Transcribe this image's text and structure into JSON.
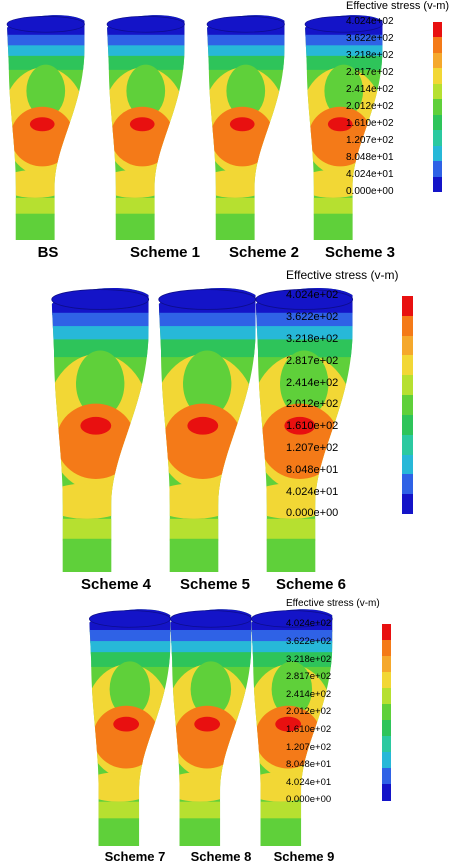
{
  "legend": {
    "title": "Effective stress (v-m)",
    "ticks": [
      "4.024e+02",
      "3.622e+02",
      "3.218e+02",
      "2.817e+02",
      "2.414e+02",
      "2.012e+02",
      "1.610e+02",
      "1.207e+02",
      "8.048e+01",
      "4.024e+01",
      "0.000e+00"
    ],
    "colors": [
      "#e81010",
      "#f47a18",
      "#f5a82c",
      "#f2d735",
      "#b6e030",
      "#5fd03a",
      "#2ec45a",
      "#2bc9a0",
      "#27b8d8",
      "#2f62e6",
      "#1414c8"
    ]
  },
  "groups": [
    {
      "id": "row1",
      "labels": [
        "BS",
        "Scheme 1",
        "Scheme 2",
        "Scheme 3"
      ]
    },
    {
      "id": "row2",
      "labels": [
        "Scheme 4",
        "Scheme 5",
        "Scheme 6"
      ]
    },
    {
      "id": "row3",
      "labels": [
        "Scheme 7",
        "Scheme 8",
        "Scheme 9"
      ]
    }
  ]
}
